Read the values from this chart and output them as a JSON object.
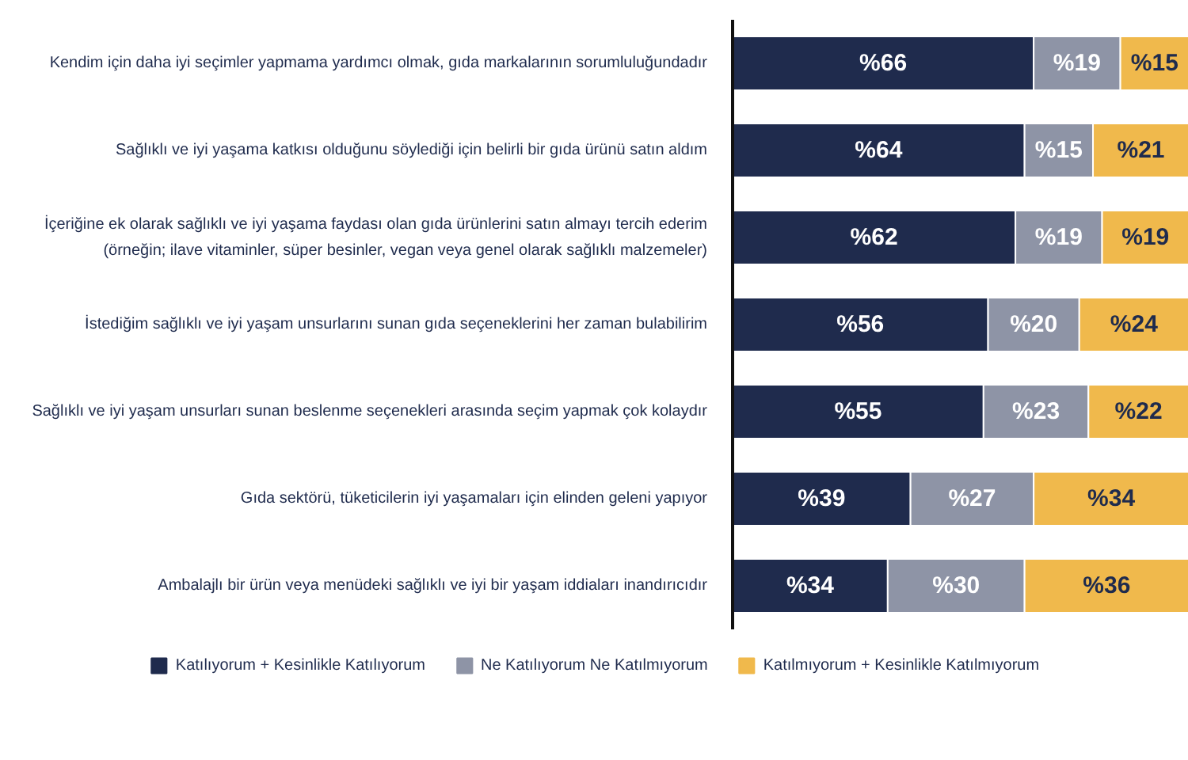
{
  "chart_data": {
    "type": "bar",
    "orientation": "horizontal",
    "stacked": true,
    "categories": [
      "Kendim için daha iyi seçimler yapmama yardımcı olmak, gıda markalarının sorumluluğundadır",
      "Sağlıklı ve iyi yaşama katkısı olduğunu söylediği için belirli bir gıda ürünü satın aldım",
      "İçeriğine ek olarak sağlıklı ve iyi yaşama faydası olan gıda ürünlerini satın almayı tercih ederim\n(örneğin; ilave vitaminler, süper besinler, vegan veya genel olarak sağlıklı malzemeler)",
      "İstediğim sağlıklı ve iyi yaşam unsurlarını sunan gıda seçeneklerini her zaman bulabilirim",
      "Sağlıklı ve iyi yaşam unsurları sunan beslenme seçenekleri arasında seçim yapmak çok kolaydır",
      "Gıda sektörü, tüketicilerin iyi yaşamaları için elinden geleni yapıyor",
      "Ambalajlı bir ürün veya menüdeki sağlıklı ve iyi bir yaşam iddiaları inandırıcıdır"
    ],
    "series": [
      {
        "name": "Katılıyorum + Kesinlikle Katılıyorum",
        "color": "#1f2b4d",
        "values": [
          66,
          64,
          62,
          56,
          55,
          39,
          34
        ],
        "value_labels": [
          "%66",
          "%64",
          "%62",
          "%56",
          "%55",
          "%39",
          "%34"
        ]
      },
      {
        "name": "Ne Katılıyorum Ne Katılmıyorum",
        "color": "#8e94a6",
        "values": [
          19,
          15,
          19,
          20,
          23,
          27,
          30
        ],
        "value_labels": [
          "%19",
          "%15",
          "%19",
          "%20",
          "%23",
          "%27",
          "%30"
        ]
      },
      {
        "name": "Katılmıyorum + Kesinlikle Katılmıyorum",
        "color": "#f0b94c",
        "values": [
          15,
          21,
          19,
          24,
          22,
          34,
          36
        ],
        "value_labels": [
          "%15",
          "%21",
          "%19",
          "%24",
          "%22",
          "%34",
          "%36"
        ]
      }
    ],
    "xlim": [
      0,
      100
    ],
    "tick_labels": "y",
    "legend": "bottom",
    "grid": false
  }
}
